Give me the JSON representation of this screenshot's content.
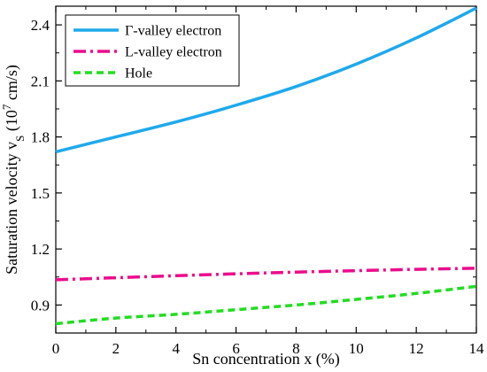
{
  "chart_data": {
    "type": "line",
    "x": [
      0,
      2,
      4,
      6,
      8,
      10,
      12,
      14
    ],
    "xlabel": "Sn concentration x (%)",
    "ylabel": {
      "main": "Saturation velocity v",
      "subscript": "S",
      "unit_prefix": " (10",
      "unit_sup": "7",
      "unit_suffix": " cm/s)"
    },
    "xlim": [
      0,
      14
    ],
    "ylim": [
      0.75,
      2.5
    ],
    "xticks": [
      "0",
      "2",
      "4",
      "6",
      "8",
      "10",
      "12",
      "14"
    ],
    "yticks": [
      "0.9",
      "1.2",
      "1.5",
      "1.8",
      "2.1",
      "2.4"
    ],
    "ytick_values": [
      0.9,
      1.2,
      1.5,
      1.8,
      2.1,
      2.4
    ],
    "grid": false,
    "legend_position": "top-left",
    "series": [
      {
        "name": "Γ-valley electron",
        "values": [
          1.72,
          1.8,
          1.88,
          1.97,
          2.07,
          2.19,
          2.33,
          2.49
        ],
        "color": "#1fa9ec",
        "style": "solid"
      },
      {
        "name": "L-valley electron",
        "values": [
          1.035,
          1.046,
          1.057,
          1.067,
          1.076,
          1.084,
          1.091,
          1.097
        ],
        "color": "#ec0c8c",
        "style": "dash-dot"
      },
      {
        "name": "Hole",
        "values": [
          0.8,
          0.83,
          0.85,
          0.875,
          0.9,
          0.93,
          0.962,
          1.0
        ],
        "color": "#22dd22",
        "style": "dashed"
      }
    ]
  }
}
